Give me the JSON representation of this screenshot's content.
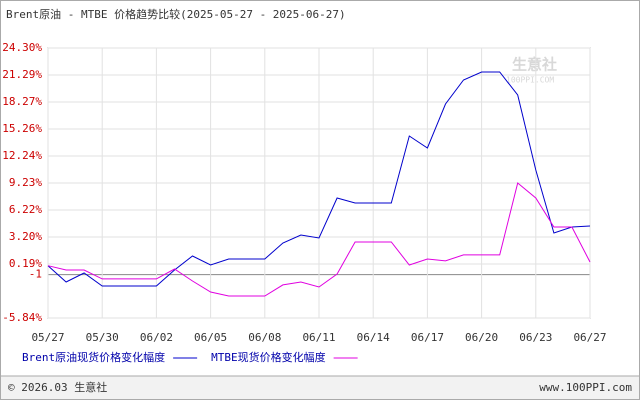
{
  "chart_data": {
    "type": "line",
    "title": "Brent原油 - MTBE 价格趋势比较(2025-05-27 - 2025-06-27)",
    "categories": [
      "05/27",
      null,
      null,
      "05/30",
      null,
      null,
      "06/02",
      null,
      null,
      "06/05",
      null,
      null,
      "06/08",
      null,
      null,
      "06/11",
      null,
      null,
      "06/14",
      null,
      null,
      "06/17",
      null,
      null,
      "06/20",
      null,
      null,
      "06/23",
      null,
      null,
      "06/27"
    ],
    "series": [
      {
        "name": "Brent原油现货价格变化幅度",
        "color": "#0000cc",
        "values": [
          0,
          -1.82,
          -0.82,
          -2.27,
          -2.27,
          -2.27,
          -2.27,
          -0.48,
          1.08,
          0.08,
          0.75,
          0.75,
          0.75,
          2.53,
          3.42,
          3.09,
          7.56,
          7.0,
          7.0,
          7.0,
          14.48,
          13.14,
          18.05,
          20.73,
          21.62,
          21.62,
          19.05,
          10.68,
          3.65,
          4.32,
          4.43
        ]
      },
      {
        "name": "MTBE现货价格变化幅度",
        "color": "#e000e0",
        "values": [
          0,
          -0.48,
          -0.48,
          -1.48,
          -1.48,
          -1.48,
          -1.48,
          -0.37,
          -1.71,
          -2.94,
          -3.38,
          -3.38,
          -3.38,
          -2.15,
          -1.82,
          -2.38,
          -0.93,
          2.64,
          2.64,
          2.64,
          0.08,
          0.75,
          0.53,
          1.2,
          1.2,
          1.2,
          9.23,
          7.56,
          4.32,
          4.32,
          0.41
        ]
      }
    ],
    "ylim": [
      -5.84,
      24.3
    ],
    "yticks": [
      {
        "value": 24.3,
        "label": "24.30%"
      },
      {
        "value": 21.29,
        "label": "21.29%"
      },
      {
        "value": 18.27,
        "label": "18.27%"
      },
      {
        "value": 15.26,
        "label": "15.26%"
      },
      {
        "value": 12.24,
        "label": "12.24%"
      },
      {
        "value": 9.23,
        "label": "9.23%"
      },
      {
        "value": 6.22,
        "label": "6.22%"
      },
      {
        "value": 3.2,
        "label": "3.20%"
      },
      {
        "value": 0.19,
        "label": "0.19%"
      },
      -1,
      {
        "value": -5.84,
        "label": "-5.84%"
      }
    ],
    "grid": true
  },
  "watermark": {
    "name": "生意社",
    "site": "100PPI.COM"
  },
  "footer": {
    "copyright": "© 2026.03 生意社",
    "site": "www.100PPI.com"
  }
}
